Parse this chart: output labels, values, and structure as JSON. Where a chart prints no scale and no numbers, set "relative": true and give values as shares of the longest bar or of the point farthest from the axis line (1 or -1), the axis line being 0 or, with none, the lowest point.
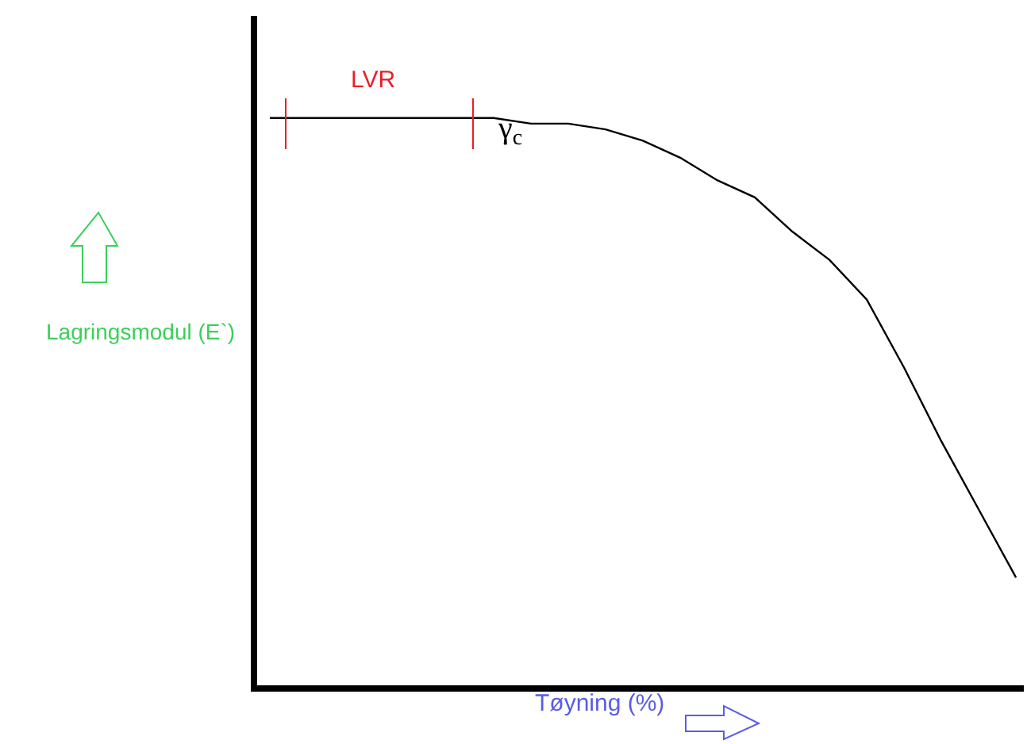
{
  "chart_data": {
    "type": "line",
    "relative": true,
    "xlabel": "Tøyning (%)",
    "ylabel": "Lagringsmodul (E`)",
    "categories": [
      null,
      null,
      null,
      null,
      null,
      null,
      null,
      null,
      null,
      null,
      null,
      null,
      null,
      null,
      null,
      null,
      null,
      null,
      null,
      null,
      null
    ],
    "series": [
      {
        "color": "#000000",
        "values": [
          1.0,
          1.0,
          1.0,
          1.0,
          1.0,
          1.0,
          1.0,
          0.99,
          0.99,
          0.98,
          0.96,
          0.93,
          0.89,
          0.86,
          0.8,
          0.75,
          0.68,
          0.56,
          0.43,
          0.31,
          0.19
        ]
      }
    ],
    "annotations": [
      "LVR",
      "γ$_{c}$"
    ],
    "marker": "none",
    "line_style": "solid"
  }
}
